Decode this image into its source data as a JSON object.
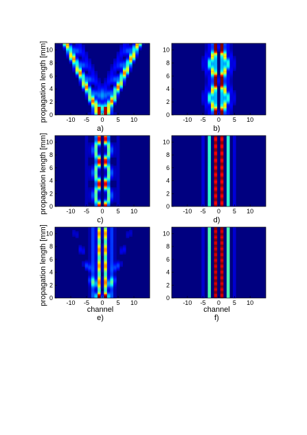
{
  "figure": {
    "type": "heatmap",
    "colormap": "jet",
    "panels": [
      {
        "id": "a",
        "label": "a)",
        "ylabel": "propagation length  [mm]",
        "xlabel": "",
        "xlim": [
          -15,
          15
        ],
        "ylim": [
          0,
          11
        ],
        "xticks": [
          "-10",
          "-5",
          "0",
          "5",
          "10"
        ],
        "yticks": [
          "0",
          "2",
          "4",
          "6",
          "8",
          "10"
        ],
        "pattern": "discrete diffraction: light launched into channels -1 and +1 spreads into two outward-propagating cones"
      },
      {
        "id": "b",
        "label": "b)",
        "ylabel": "",
        "xlabel": "",
        "xlim": [
          -15,
          15
        ],
        "ylim": [
          0,
          11
        ],
        "xticks": [
          "-10",
          "-5",
          "0",
          "5",
          "10"
        ],
        "yticks": [
          "0",
          "2",
          "4",
          "6",
          "8",
          "10"
        ],
        "pattern": "breathing localized beam around channels -1 to +1, maxima near 0, 5.5 and 10.5 mm"
      },
      {
        "id": "c",
        "label": "c)",
        "ylabel": "propagation length  [mm]",
        "xlabel": "",
        "xlim": [
          -15,
          15
        ],
        "ylim": [
          0,
          11
        ],
        "xticks": [
          "-10",
          "-5",
          "0",
          "5",
          "10"
        ],
        "yticks": [
          "0",
          "2",
          "4",
          "6",
          "8",
          "10"
        ],
        "pattern": "oscillating localized beam with period ~3.5 mm, maxima near 0, 3.5, 7 and 10.5 mm"
      },
      {
        "id": "d",
        "label": "d)",
        "ylabel": "",
        "xlabel": "",
        "xlim": [
          -15,
          15
        ],
        "ylim": [
          0,
          11
        ],
        "xticks": [
          "-10",
          "-5",
          "0",
          "5",
          "10"
        ],
        "yticks": [
          "0",
          "2",
          "4",
          "6",
          "8",
          "10"
        ],
        "pattern": "strongly localized stationary beam in channels -1 and +1"
      },
      {
        "id": "e",
        "label": "e)",
        "ylabel": "propagation length  [mm]",
        "xlabel": "channel",
        "xlim": [
          -15,
          15
        ],
        "ylim": [
          0,
          11
        ],
        "xticks": [
          "-10",
          "-5",
          "0",
          "5",
          "10"
        ],
        "yticks": [
          "0",
          "2",
          "4",
          "6",
          "8",
          "10"
        ],
        "pattern": "partially localized beam with weak spreading side lobes"
      },
      {
        "id": "f",
        "label": "f)",
        "ylabel": "",
        "xlabel": "channel",
        "xlim": [
          -15,
          15
        ],
        "ylim": [
          0,
          11
        ],
        "xticks": [
          "-10",
          "-5",
          "0",
          "5",
          "10"
        ],
        "yticks": [
          "0",
          "2",
          "4",
          "6",
          "8",
          "10"
        ],
        "pattern": "fully localized beam confined to channels -1 and +1"
      }
    ]
  },
  "chart_data": [
    {
      "type": "heatmap",
      "panel": "a)",
      "x": "channel",
      "xlim": [
        -15,
        15
      ],
      "ylim": [
        0,
        11
      ],
      "colormap": "jet",
      "bright_features": [
        {
          "channels": [
            -1,
            1
          ],
          "z_range": [
            0,
            1.5
          ]
        },
        {
          "channels": [
            -3,
            3
          ],
          "z_range": [
            2,
            3.5
          ]
        },
        {
          "channels": [
            -5,
            5
          ],
          "z_range": [
            4,
            5.5
          ]
        },
        {
          "channels": [
            -7,
            7
          ],
          "z_range": [
            6,
            7.5
          ]
        },
        {
          "channels": [
            -9,
            9
          ],
          "z_range": [
            8,
            9.5
          ]
        },
        {
          "channels": [
            -11,
            11
          ],
          "z_range": [
            10,
            11
          ]
        }
      ]
    },
    {
      "type": "heatmap",
      "panel": "b)",
      "x": "channel",
      "xlim": [
        -15,
        15
      ],
      "ylim": [
        0,
        11
      ],
      "colormap": "jet",
      "bright_features": [
        {
          "channels": [
            -1,
            1
          ],
          "z_range": [
            0,
            1.5
          ],
          "peak": "red"
        },
        {
          "channels": [
            -3,
            3
          ],
          "z_range": [
            2,
            4
          ],
          "peak": "yellow"
        },
        {
          "channels": [
            -1,
            1
          ],
          "z_range": [
            5,
            6.5
          ],
          "peak": "yellow"
        },
        {
          "channels": [
            -3,
            3
          ],
          "z_range": [
            7,
            9
          ],
          "peak": "yellow"
        },
        {
          "channels": [
            -1,
            1
          ],
          "z_range": [
            9.5,
            11
          ],
          "peak": "red"
        }
      ]
    },
    {
      "type": "heatmap",
      "panel": "c)",
      "x": "channel",
      "xlim": [
        -15,
        15
      ],
      "ylim": [
        0,
        11
      ],
      "colormap": "jet",
      "bright_features": [
        {
          "channels": [
            -1,
            1
          ],
          "z_range": [
            0,
            1
          ],
          "peak": "red"
        },
        {
          "channels": [
            -2,
            2
          ],
          "z_range": [
            1.5,
            2.5
          ],
          "peak": "yellow"
        },
        {
          "channels": [
            -1,
            1
          ],
          "z_range": [
            3,
            4
          ],
          "peak": "red"
        },
        {
          "channels": [
            -2,
            2
          ],
          "z_range": [
            4.5,
            5.5
          ],
          "peak": "yellow"
        },
        {
          "channels": [
            -1,
            1
          ],
          "z_range": [
            6,
            7
          ],
          "peak": "red"
        },
        {
          "channels": [
            -2,
            2
          ],
          "z_range": [
            8,
            9
          ],
          "peak": "yellow"
        },
        {
          "channels": [
            -1,
            1
          ],
          "z_range": [
            9.5,
            11
          ],
          "peak": "red"
        }
      ]
    },
    {
      "type": "heatmap",
      "panel": "d)",
      "x": "channel",
      "xlim": [
        -15,
        15
      ],
      "ylim": [
        0,
        11
      ],
      "colormap": "jet",
      "bright_features": [
        {
          "channels": [
            -1,
            1
          ],
          "z_range": [
            0,
            11
          ],
          "peak": "red"
        },
        {
          "channels": [
            -3,
            3
          ],
          "z_range": [
            0,
            11
          ],
          "peak": "cyan"
        }
      ]
    },
    {
      "type": "heatmap",
      "panel": "e)",
      "x": "channel",
      "xlim": [
        -15,
        15
      ],
      "ylim": [
        0,
        11
      ],
      "colormap": "jet",
      "bright_features": [
        {
          "channels": [
            -1,
            1
          ],
          "z_range": [
            0,
            11
          ],
          "peak": "yellow"
        },
        {
          "channels": [
            -3,
            3
          ],
          "z_range": [
            1,
            4
          ],
          "peak": "yellow"
        },
        {
          "channels": [
            -5,
            5
          ],
          "z_range": [
            3,
            6
          ],
          "peak": "cyan"
        },
        {
          "channels": [
            -7,
            7
          ],
          "z_range": [
            6,
            9
          ],
          "peak": "cyan"
        }
      ]
    },
    {
      "type": "heatmap",
      "panel": "f)",
      "x": "channel",
      "xlim": [
        -15,
        15
      ],
      "ylim": [
        0,
        11
      ],
      "colormap": "jet",
      "bright_features": [
        {
          "channels": [
            -1,
            1
          ],
          "z_range": [
            0,
            11
          ],
          "peak": "red"
        },
        {
          "channels": [
            -3,
            3
          ],
          "z_range": [
            0,
            11
          ],
          "peak": "cyan"
        }
      ]
    }
  ]
}
